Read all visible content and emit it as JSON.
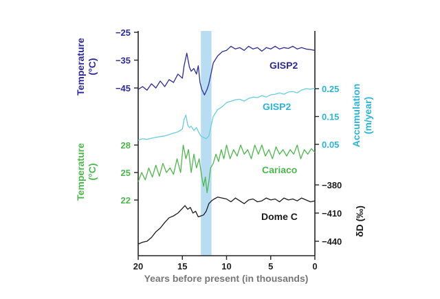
{
  "chart_data": {
    "type": "line",
    "title": "",
    "xlabel": "Years before present (in thousands)",
    "xlim": [
      20,
      0
    ],
    "x_ticks": [
      "20",
      "15",
      "10",
      "5",
      "0"
    ],
    "shaded_band": {
      "x_start": 12.9,
      "x_end": 11.7,
      "color": "#b8ddf3"
    },
    "series": [
      {
        "name": "GISP2",
        "variable": "Temperature",
        "axis_label": "Temperature (°C)",
        "axis_side": "left",
        "color": "#2b2a9a",
        "label_color": "#2b2a9a",
        "ticks": [
          "-25",
          "-35",
          "-45"
        ],
        "tick_values": [
          -25,
          -35,
          -45
        ],
        "x": [
          20,
          19.5,
          19,
          18.5,
          18,
          17.5,
          17,
          16.5,
          16,
          15.5,
          15,
          14.8,
          14.5,
          14.2,
          14,
          13.7,
          13.4,
          13.2,
          13,
          12.8,
          12.5,
          12.2,
          12,
          11.7,
          11.5,
          11,
          10.5,
          10,
          9.5,
          9,
          8.5,
          8,
          7.5,
          7,
          6.5,
          6,
          5.5,
          5,
          4.5,
          4,
          3.5,
          3,
          2.5,
          2,
          1.5,
          1,
          0.5,
          0
        ],
        "values": [
          -45.5,
          -44.5,
          -45.8,
          -43.5,
          -45,
          -42.5,
          -44.5,
          -42,
          -43,
          -40,
          -41.5,
          -37,
          -32.5,
          -37.5,
          -39,
          -38,
          -40,
          -37,
          -43,
          -45.5,
          -47.5,
          -45.5,
          -43.5,
          -39,
          -36,
          -33.5,
          -32,
          -31.5,
          -30,
          -31,
          -30.5,
          -31.5,
          -30,
          -31,
          -30.5,
          -31.8,
          -30.5,
          -31,
          -30,
          -31,
          -30.5,
          -30.8,
          -30,
          -31,
          -30.5,
          -31,
          -31.2,
          -31.5
        ]
      },
      {
        "name": "GISP2",
        "variable": "Accumulation",
        "axis_label": "Accumulation (m/year)",
        "axis_side": "right",
        "color": "#66cee0",
        "label_color": "#29b5d8",
        "ticks": [
          "0.25",
          "0.15",
          "0.05"
        ],
        "tick_values": [
          0.25,
          0.15,
          0.05
        ],
        "x": [
          20,
          19.5,
          19,
          18.5,
          18,
          17.5,
          17,
          16.5,
          16,
          15.5,
          15,
          14.8,
          14.6,
          14.4,
          14.2,
          14,
          13.7,
          13.4,
          13.1,
          12.9,
          12.6,
          12.3,
          12,
          11.8,
          11.5,
          11,
          10.5,
          10,
          9.5,
          9,
          8.5,
          8,
          7.5,
          7,
          6.5,
          6,
          5.5,
          5,
          4.5,
          4,
          3.5,
          3,
          2.5,
          2,
          1.5,
          1,
          0.5,
          0
        ],
        "values": [
          0.065,
          0.07,
          0.068,
          0.072,
          0.075,
          0.078,
          0.08,
          0.085,
          0.09,
          0.095,
          0.105,
          0.14,
          0.155,
          0.12,
          0.11,
          0.115,
          0.1,
          0.11,
          0.09,
          0.08,
          0.075,
          0.07,
          0.08,
          0.11,
          0.15,
          0.175,
          0.185,
          0.2,
          0.205,
          0.21,
          0.212,
          0.205,
          0.215,
          0.22,
          0.218,
          0.225,
          0.22,
          0.228,
          0.23,
          0.235,
          0.23,
          0.238,
          0.24,
          0.235,
          0.245,
          0.25,
          0.248,
          0.252
        ]
      },
      {
        "name": "Cariaco",
        "variable": "Temperature",
        "axis_label": "Temperature (°C)",
        "axis_side": "left",
        "color": "#4bb84b",
        "label_color": "#4bb84b",
        "ticks": [
          "28",
          "25",
          "22"
        ],
        "tick_values": [
          28,
          25,
          22
        ],
        "x": [
          20,
          19.6,
          19.2,
          18.8,
          18.4,
          18,
          17.6,
          17.2,
          16.8,
          16.4,
          16,
          15.6,
          15.2,
          14.9,
          14.6,
          14.3,
          14,
          13.7,
          13.4,
          13.1,
          12.8,
          12.6,
          12.4,
          12.2,
          12,
          11.8,
          11.5,
          11.2,
          10.9,
          10.6,
          10.3,
          10,
          9.6,
          9.2,
          8.8,
          8.4,
          8,
          7.6,
          7.2,
          6.8,
          6.4,
          6,
          5.6,
          5.2,
          4.8,
          4.4,
          4,
          3.6,
          3.2,
          2.8,
          2.4,
          2,
          1.6,
          1.2,
          0.8,
          0.4,
          0
        ],
        "values": [
          24,
          25,
          24.2,
          25.5,
          24.5,
          25.8,
          24.6,
          26,
          25,
          25.5,
          24.8,
          26.5,
          25,
          28,
          26.5,
          27.5,
          25,
          27,
          25.5,
          26.5,
          24.5,
          23.5,
          24.5,
          22.8,
          24,
          25.5,
          26,
          27,
          26.2,
          27.5,
          26.5,
          28,
          26.5,
          27.5,
          26.8,
          28,
          27,
          27.5,
          26.5,
          28,
          27,
          28,
          26.8,
          27.5,
          26.5,
          27.8,
          27,
          27.5,
          26.8,
          27.5,
          27,
          28,
          26.5,
          27.5,
          27,
          27.6,
          27.2
        ]
      },
      {
        "name": "Dome C",
        "variable": "δD",
        "axis_label": "δD (‰)",
        "axis_side": "right",
        "color": "#1a1a1a",
        "label_color": "#1a1a1a",
        "ticks": [
          "-380",
          "-410",
          "-440"
        ],
        "tick_values": [
          -380,
          -410,
          -440
        ],
        "x": [
          20,
          19.5,
          19,
          18.5,
          18,
          17.5,
          17,
          16.5,
          16,
          15.5,
          15,
          14.7,
          14.4,
          14.1,
          13.8,
          13.5,
          13.2,
          12.9,
          12.6,
          12.3,
          12,
          11.7,
          11.4,
          11,
          10.5,
          10,
          9.5,
          9,
          8.5,
          8,
          7.5,
          7,
          6.5,
          6,
          5.5,
          5,
          4.5,
          4,
          3.5,
          3,
          2.5,
          2,
          1.5,
          1,
          0.5,
          0
        ],
        "values": [
          -443,
          -441,
          -440,
          -436,
          -430,
          -426,
          -420,
          -415,
          -413,
          -410,
          -405,
          -402,
          -406,
          -404,
          -410,
          -408,
          -414,
          -413,
          -412,
          -408,
          -400,
          -397,
          -395,
          -393,
          -394,
          -395,
          -398,
          -394,
          -397,
          -400,
          -396,
          -395,
          -398,
          -397,
          -394,
          -396,
          -395,
          -398,
          -394,
          -396,
          -395,
          -397,
          -394,
          -396,
          -398,
          -397
        ]
      }
    ]
  }
}
